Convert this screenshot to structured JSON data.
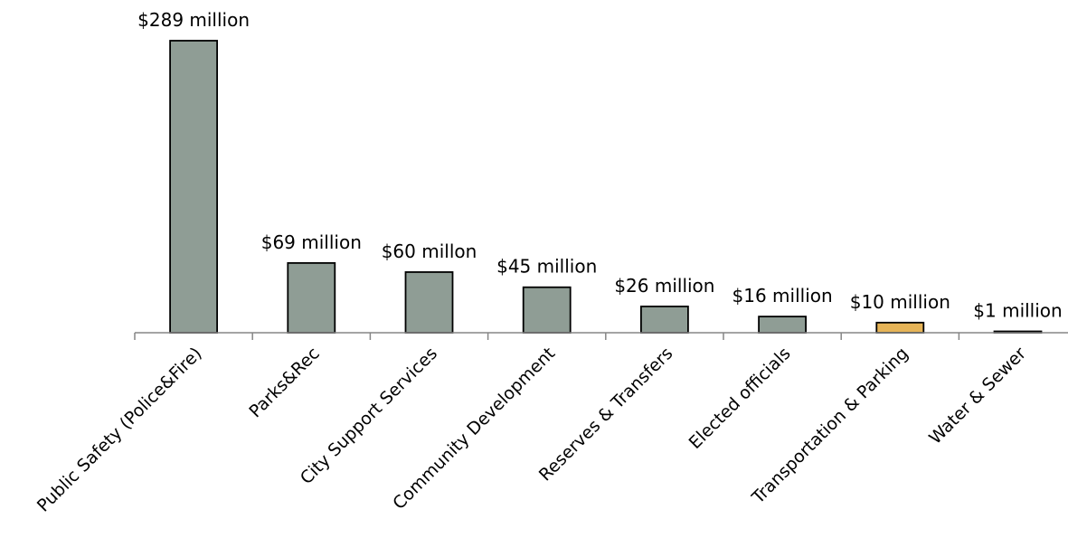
{
  "chart_data": {
    "type": "bar",
    "title": "",
    "xlabel": "",
    "ylabel": "",
    "categories": [
      "Public Safety (Police&Fire)",
      "Parks&Rec",
      "City Support Services",
      "Community Development",
      "Reserves & Transfers",
      "Elected officials",
      "Transportation & Parking",
      "Water & Sewer"
    ],
    "values": [
      289,
      69,
      60,
      45,
      26,
      16,
      10,
      1
    ],
    "data_labels": [
      "$289 million",
      "$69 million",
      "$60 millon",
      "$45 million",
      "$26 million",
      "$16 million",
      "$10 million",
      "$1 million"
    ],
    "ylim": [
      0,
      289
    ],
    "grid": false,
    "legend": "none",
    "colors": {
      "default_bar": "#8f9d95",
      "highlight_bar": "#e6b457",
      "bar_outline": "#000000",
      "axis": "#868686"
    },
    "highlight_index": 6
  }
}
